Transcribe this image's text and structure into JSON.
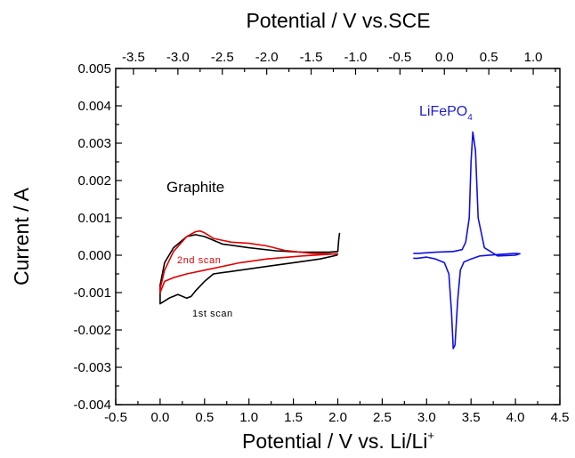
{
  "chart_data": {
    "type": "line",
    "title": "",
    "xlabel": "Potential / V vs. Li/Li",
    "xlabel_superscript": "+",
    "ylabel": "Current / A",
    "top_axis_label": "Potential / V vs.SCE",
    "xlim": [
      -0.5,
      4.5
    ],
    "ylim": [
      -0.004,
      0.005
    ],
    "x_ticks": [
      "-0.5",
      "0.0",
      "0.5",
      "1.0",
      "1.5",
      "2.0",
      "2.5",
      "3.0",
      "3.5",
      "4.0",
      "4.5"
    ],
    "y_ticks": [
      "0.005",
      "0.004",
      "0.003",
      "0.002",
      "0.001",
      "0.000",
      "-0.001",
      "-0.002",
      "-0.003",
      "-0.004"
    ],
    "top_ticks": [
      "-3.5",
      "-3.0",
      "-2.5",
      "-2.0",
      "-1.5",
      "-1.0",
      "-0.5",
      "0.0",
      "0.5",
      "1.0"
    ],
    "grid": false,
    "legend": "none",
    "colors": {
      "first_scan": "#000000",
      "second_scan": "#e00000",
      "lifepo4": "#1010e0",
      "lifepo4_label": "#2020d0",
      "axis": "#000000"
    },
    "annotations": {
      "graphite": "Graphite",
      "second_scan": "2nd scan",
      "first_scan": "1st scan",
      "lifepo4_main": "LiFePO",
      "lifepo4_sub": "4"
    },
    "series": [
      {
        "label_key": "first_scan",
        "x": [
          2.0,
          1.99,
          1.8,
          1.5,
          1.2,
          0.9,
          0.6,
          0.5,
          0.4,
          0.35,
          0.3,
          0.2,
          0.1,
          0.0,
          0.0,
          0.05,
          0.15,
          0.3,
          0.4,
          0.5,
          0.7,
          1.0,
          1.3,
          1.6,
          1.9,
          2.0,
          2.01,
          2.02
        ],
        "y": [
          5e-05,
          0.0,
          -0.0001,
          -0.0002,
          -0.0003,
          -0.0004,
          -0.0005,
          -0.0007,
          -0.00095,
          -0.0011,
          -0.00115,
          -0.00105,
          -0.00115,
          -0.0013,
          -0.0008,
          -0.0002,
          0.0002,
          0.0005,
          0.00055,
          0.0005,
          0.0003,
          0.0002,
          0.00012,
          8e-05,
          8e-05,
          0.0001,
          0.0004,
          0.0006
        ]
      },
      {
        "label_key": "second_scan",
        "x": [
          2.0,
          1.6,
          1.2,
          0.9,
          0.7,
          0.5,
          0.3,
          0.15,
          0.05,
          0.0,
          0.0,
          0.05,
          0.15,
          0.3,
          0.4,
          0.45,
          0.5,
          0.6,
          0.8,
          1.0,
          1.2,
          1.4,
          1.7,
          2.0
        ],
        "y": [
          4e-05,
          -2e-05,
          -0.0001,
          -0.0002,
          -0.0003,
          -0.0004,
          -0.0005,
          -0.0006,
          -0.0007,
          -0.001,
          -0.0009,
          -0.0004,
          0.0001,
          0.0005,
          0.00063,
          0.00065,
          0.0006,
          0.00045,
          0.00035,
          0.00032,
          0.00025,
          0.00013,
          5e-05,
          3e-05
        ]
      },
      {
        "label_key": "lifepo4",
        "x": [
          2.85,
          2.9,
          3.0,
          3.1,
          3.2,
          3.25,
          3.28,
          3.3,
          3.32,
          3.35,
          3.38,
          3.42,
          3.5,
          3.6,
          3.8,
          4.0,
          4.05,
          4.0,
          3.8,
          3.65,
          3.58,
          3.55,
          3.52,
          3.5,
          3.48,
          3.44,
          3.4,
          3.3,
          3.1,
          2.9,
          2.85
        ],
        "y": [
          -8e-05,
          -8e-05,
          -5e-05,
          -0.0001,
          -0.0002,
          -0.0005,
          -0.0015,
          -0.0025,
          -0.0024,
          -0.0012,
          -0.0004,
          -0.00018,
          -0.0001,
          -2e-05,
          2e-05,
          5e-05,
          4e-05,
          0.0,
          -2e-05,
          0.0002,
          0.001,
          0.0028,
          0.0033,
          0.0025,
          0.001,
          0.00035,
          0.00015,
          0.0001,
          8e-05,
          5e-05,
          5e-05
        ]
      }
    ]
  }
}
